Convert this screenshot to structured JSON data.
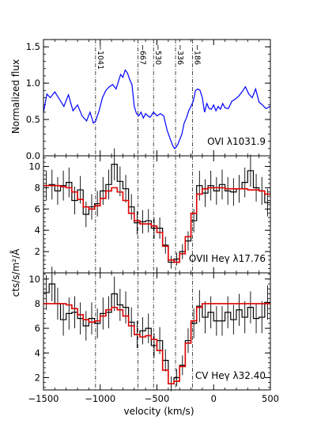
{
  "chart_data": {
    "type": "line",
    "xlabel": "velocity (km/s)",
    "xlim": [
      -1500,
      500
    ],
    "x_ticks": [
      "−1500",
      "−1000",
      "−500",
      "0",
      "500"
    ],
    "shared_ylabel": "cts/s/m²/Å",
    "velocity_markers": {
      "values": [
        -1041,
        -667,
        -530,
        -336,
        -186
      ],
      "labels": [
        "−1041",
        "−667",
        "−530",
        "−336",
        "−186"
      ]
    },
    "panels": [
      {
        "label": "OVI λ1031.9",
        "ylabel": "Normalized flux",
        "ylim": [
          0.0,
          1.6
        ],
        "y_ticks": [
          "0.0",
          "0.5",
          "1.0",
          "1.5"
        ],
        "series": [
          {
            "color": "#0000ff",
            "x": [
              -1500,
              -1470,
              -1440,
              -1400,
              -1360,
              -1320,
              -1280,
              -1240,
              -1200,
              -1160,
              -1120,
              -1090,
              -1060,
              -1040,
              -1010,
              -980,
              -950,
              -920,
              -890,
              -860,
              -840,
              -820,
              -800,
              -780,
              -760,
              -740,
              -720,
              -700,
              -680,
              -660,
              -640,
              -620,
              -600,
              -580,
              -560,
              -530,
              -500,
              -470,
              -440,
              -410,
              -380,
              -360,
              -345,
              -330,
              -315,
              -300,
              -280,
              -260,
              -240,
              -220,
              -200,
              -180,
              -160,
              -140,
              -120,
              -100,
              -80,
              -60,
              -40,
              -20,
              0,
              20,
              40,
              60,
              80,
              100,
              130,
              160,
              190,
              220,
              250,
              280,
              310,
              340,
              370,
              400,
              430,
              460,
              500
            ],
            "y": [
              0.6,
              0.85,
              0.8,
              0.88,
              0.78,
              0.68,
              0.84,
              0.62,
              0.7,
              0.55,
              0.48,
              0.6,
              0.45,
              0.48,
              0.62,
              0.8,
              0.9,
              0.95,
              0.98,
              0.92,
              1.02,
              1.12,
              1.08,
              1.18,
              1.14,
              1.05,
              0.98,
              0.68,
              0.58,
              0.55,
              0.6,
              0.52,
              0.58,
              0.55,
              0.53,
              0.6,
              0.55,
              0.58,
              0.55,
              0.35,
              0.22,
              0.14,
              0.1,
              0.12,
              0.16,
              0.22,
              0.3,
              0.45,
              0.52,
              0.62,
              0.68,
              0.75,
              0.9,
              0.92,
              0.9,
              0.8,
              0.6,
              0.72,
              0.65,
              0.64,
              0.7,
              0.62,
              0.68,
              0.64,
              0.72,
              0.66,
              0.65,
              0.75,
              0.78,
              0.82,
              0.88,
              0.95,
              0.85,
              0.8,
              0.92,
              0.74,
              0.7,
              0.65,
              0.68
            ]
          }
        ]
      },
      {
        "label": "OVII Heγ λ17.76",
        "ylim": [
          0,
          11
        ],
        "y_ticks": [
          "2",
          "4",
          "6",
          "8",
          "10"
        ],
        "series": [
          {
            "name": "data",
            "color": "#000000",
            "x": [
              -1475,
              -1425,
              -1375,
              -1325,
              -1275,
              -1225,
              -1175,
              -1125,
              -1075,
              -1025,
              -975,
              -925,
              -875,
              -825,
              -775,
              -725,
              -675,
              -625,
              -575,
              -525,
              -475,
              -425,
              -375,
              -325,
              -275,
              -225,
              -175,
              -125,
              -75,
              -25,
              25,
              75,
              125,
              175,
              225,
              275,
              325,
              375,
              425,
              475
            ],
            "y": [
              8.2,
              8.3,
              7.7,
              8.2,
              8.5,
              6.8,
              7.8,
              5.5,
              6.2,
              6.5,
              7.7,
              8.3,
              10.2,
              8.6,
              7.9,
              6.2,
              4.7,
              4.8,
              4.9,
              4.2,
              4.2,
              2.6,
              1.0,
              1.3,
              2.0,
              3.0,
              4.9,
              8.2,
              7.5,
              8.2,
              7.7,
              8.3,
              7.7,
              7.6,
              7.9,
              8.5,
              9.6,
              8.0,
              7.7,
              6.6
            ],
            "err": [
              1.4,
              1.4,
              1.3,
              1.4,
              1.4,
              1.3,
              1.3,
              1.2,
              1.2,
              1.2,
              1.3,
              1.4,
              1.5,
              1.4,
              1.3,
              1.2,
              1.1,
              1.1,
              1.1,
              1.0,
              1.0,
              0.8,
              0.6,
              0.6,
              0.7,
              0.9,
              1.1,
              1.4,
              1.3,
              1.4,
              1.3,
              1.4,
              1.3,
              1.3,
              1.3,
              1.4,
              1.5,
              1.3,
              1.3,
              1.3
            ]
          },
          {
            "name": "model",
            "color": "#e00000",
            "x": [
              -1475,
              -1425,
              -1375,
              -1325,
              -1275,
              -1225,
              -1175,
              -1125,
              -1075,
              -1025,
              -975,
              -925,
              -875,
              -825,
              -775,
              -725,
              -675,
              -625,
              -575,
              -525,
              -475,
              -425,
              -375,
              -325,
              -275,
              -225,
              -175,
              -125,
              -75,
              -25,
              25,
              75,
              125,
              175,
              225,
              275,
              325,
              375,
              425,
              475
            ],
            "y": [
              8.2,
              8.2,
              8.2,
              8.1,
              8.0,
              7.6,
              6.9,
              6.2,
              6.0,
              6.3,
              7.0,
              7.7,
              8.0,
              7.6,
              6.8,
              5.6,
              4.9,
              4.6,
              4.6,
              4.4,
              3.8,
              2.5,
              1.2,
              1.0,
              1.8,
              3.4,
              5.6,
              7.4,
              7.9,
              8.0,
              8.0,
              8.0,
              7.9,
              7.9,
              7.9,
              7.9,
              7.8,
              7.8,
              7.7,
              7.4
            ]
          }
        ]
      },
      {
        "label": "CV Heγ λ32.40",
        "ylim": [
          1,
          10.5
        ],
        "y_ticks": [
          "2",
          "4",
          "6",
          "8",
          "10"
        ],
        "series": [
          {
            "name": "data",
            "color": "#000000",
            "x": [
              -1475,
              -1425,
              -1375,
              -1325,
              -1275,
              -1225,
              -1175,
              -1125,
              -1075,
              -1025,
              -975,
              -925,
              -875,
              -825,
              -775,
              -725,
              -675,
              -625,
              -575,
              -525,
              -475,
              -425,
              -375,
              -325,
              -275,
              -225,
              -175,
              -125,
              -75,
              -25,
              25,
              75,
              125,
              175,
              225,
              275,
              325,
              375,
              425,
              475
            ],
            "y": [
              8.9,
              9.6,
              8.0,
              6.7,
              7.2,
              7.3,
              6.8,
              6.2,
              6.8,
              6.4,
              7.2,
              7.3,
              8.8,
              7.9,
              7.7,
              6.5,
              5.5,
              5.8,
              6.0,
              4.6,
              5.0,
              3.4,
              1.5,
              2.0,
              3.0,
              5.0,
              6.4,
              7.8,
              6.9,
              7.3,
              6.6,
              6.6,
              7.3,
              6.7,
              7.5,
              6.9,
              7.7,
              6.8,
              6.9,
              8.1
            ],
            "err": [
              1.4,
              1.4,
              1.3,
              1.3,
              1.3,
              1.3,
              1.3,
              1.2,
              1.3,
              1.2,
              1.3,
              1.3,
              1.4,
              1.3,
              1.3,
              1.2,
              1.1,
              1.1,
              1.2,
              1.0,
              1.1,
              0.9,
              0.6,
              0.7,
              0.8,
              1.0,
              1.2,
              1.3,
              1.3,
              1.3,
              1.2,
              1.2,
              1.3,
              1.2,
              1.3,
              1.3,
              1.3,
              1.2,
              1.3,
              1.4
            ]
          },
          {
            "name": "model",
            "color": "#e00000",
            "x": [
              -1475,
              -1425,
              -1375,
              -1325,
              -1275,
              -1225,
              -1175,
              -1125,
              -1075,
              -1025,
              -975,
              -925,
              -875,
              -825,
              -775,
              -725,
              -675,
              -625,
              -575,
              -525,
              -475,
              -425,
              -375,
              -325,
              -275,
              -225,
              -175,
              -125,
              -75,
              -25,
              25,
              75,
              125,
              175,
              225,
              275,
              325,
              375,
              425,
              475
            ],
            "y": [
              8.0,
              8.0,
              8.0,
              8.0,
              7.9,
              7.6,
              7.1,
              6.7,
              6.5,
              6.6,
              7.0,
              7.5,
              7.7,
              7.5,
              7.0,
              6.2,
              5.5,
              5.3,
              5.4,
              5.1,
              4.2,
              2.6,
              1.5,
              1.7,
              2.9,
              4.8,
              6.6,
              7.7,
              8.0,
              8.0,
              8.0,
              8.0,
              8.0,
              8.0,
              8.0,
              8.0,
              8.0,
              8.0,
              8.0,
              8.0
            ]
          }
        ]
      }
    ]
  }
}
